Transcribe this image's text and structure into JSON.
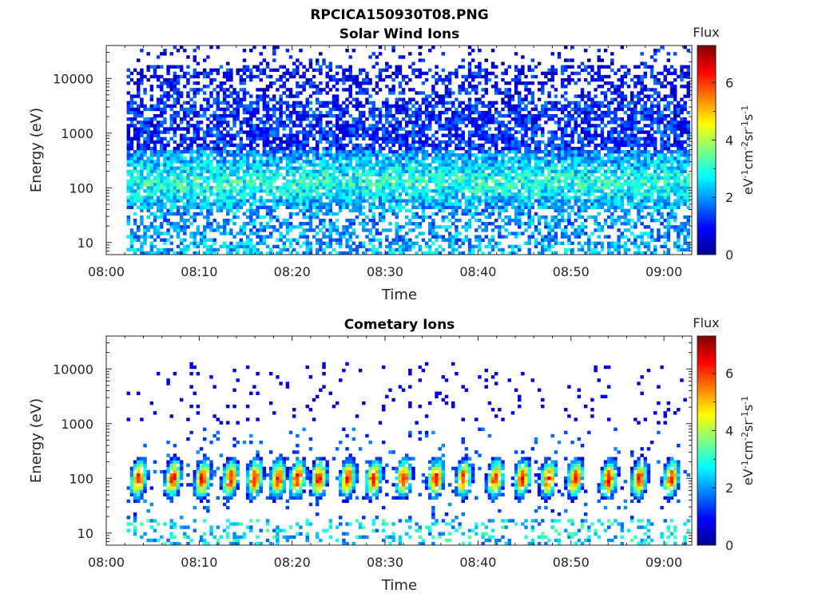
{
  "figure": {
    "title": "RPCICA150930T08.PNG"
  },
  "chart_data": [
    {
      "type": "heatmap",
      "title": "Solar Wind Ions",
      "xlabel": "Time",
      "ylabel": "Energy (eV)",
      "x_ticks": [
        "08:00",
        "08:10",
        "08:20",
        "08:30",
        "08:40",
        "08:50",
        "09:00"
      ],
      "x_tick_minutes": [
        0,
        10,
        20,
        30,
        40,
        50,
        60
      ],
      "xlim_minutes": [
        0,
        63
      ],
      "data_start_minute": 2.2,
      "y_scale": "log",
      "y_ticks": [
        "10",
        "100",
        "1000",
        "10000"
      ],
      "y_tick_values": [
        10,
        100,
        1000,
        10000
      ],
      "ylim": [
        6,
        40000
      ],
      "colorbar": {
        "label": "Flux",
        "unit_label": "eV⁻¹cm⁻²sr⁻¹s⁻¹",
        "ticks": [
          "0",
          "2",
          "4",
          "6"
        ],
        "tick_values": [
          0,
          2,
          4,
          6
        ],
        "range": [
          0,
          7.3
        ]
      },
      "colormap": "jet",
      "description_values": {
        "flux_high_energy": "0.5-2.5 sparse",
        "flux_low_energy_100eV": "1-3.5"
      }
    },
    {
      "type": "heatmap",
      "title": "Cometary Ions",
      "xlabel": "Time",
      "ylabel": "Energy (eV)",
      "x_ticks": [
        "08:00",
        "08:10",
        "08:20",
        "08:30",
        "08:40",
        "08:50",
        "09:00"
      ],
      "x_tick_minutes": [
        0,
        10,
        20,
        30,
        40,
        50,
        60
      ],
      "xlim_minutes": [
        0,
        63
      ],
      "data_start_minute": 2.2,
      "y_scale": "log",
      "y_ticks": [
        "10",
        "100",
        "1000",
        "10000"
      ],
      "y_tick_values": [
        10,
        100,
        1000,
        10000
      ],
      "ylim": [
        6,
        40000
      ],
      "colorbar": {
        "label": "Flux",
        "unit_label": "eV⁻¹cm⁻²sr⁻¹s⁻¹",
        "ticks": [
          "0",
          "2",
          "4",
          "6"
        ],
        "tick_values": [
          0,
          2,
          4,
          6
        ],
        "range": [
          0,
          7.3
        ]
      },
      "colormap": "jet",
      "burst_minutes": [
        3.3,
        7.0,
        10.2,
        13.2,
        15.8,
        18.3,
        20.4,
        22.7,
        25.8,
        28.6,
        31.8,
        35.3,
        38.3,
        41.7,
        44.6,
        47.4,
        50.3,
        53.9,
        57.2,
        60.6
      ],
      "burst_peak_energy_eV": 100,
      "burst_peak_flux": 6.3
    }
  ]
}
